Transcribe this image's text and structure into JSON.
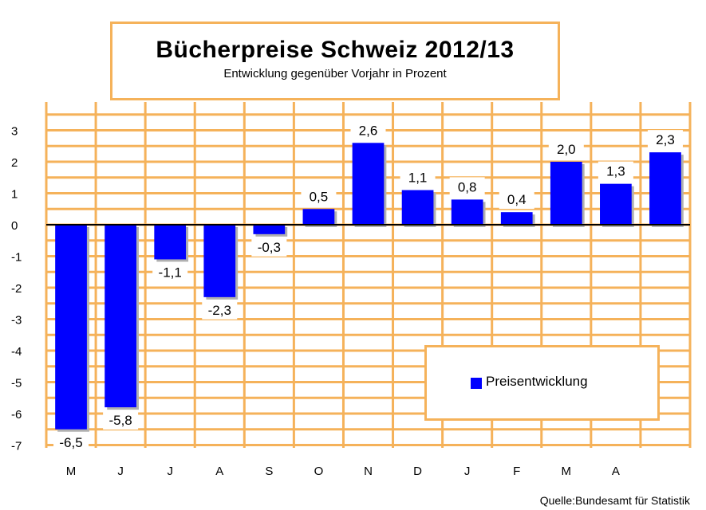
{
  "chart_data": {
    "type": "bar",
    "title": "Bücherpreise Schweiz 2012/13",
    "subtitle": "Entwicklung gegenüber Vorjahr in Prozent",
    "categories": [
      "M",
      "J",
      "J",
      "A",
      "S",
      "O",
      "N",
      "D",
      "J",
      "F",
      "M",
      "A",
      ""
    ],
    "series": [
      {
        "name": "Preisentwicklung",
        "values": [
          -6.5,
          -5.8,
          -1.1,
          -2.3,
          -0.3,
          0.5,
          2.6,
          1.1,
          0.8,
          0.4,
          2.0,
          1.3,
          2.3
        ],
        "labels": [
          "-6,5",
          "-5,8",
          "-1,1",
          "-2,3",
          "-0,3",
          "0,5",
          "2,6",
          "1,1",
          "0,8",
          "0,4",
          "2,0",
          "1,3",
          "2,3"
        ]
      }
    ],
    "yticks": [
      3,
      2,
      1,
      0,
      -1,
      -2,
      -3,
      -4,
      -5,
      -6,
      -7
    ],
    "ytick_labels": [
      "3",
      "2",
      "1",
      "0",
      "-1",
      "-2",
      "-3",
      "-4",
      "-5",
      "-6",
      "-7"
    ],
    "ylim": [
      -7,
      3.5
    ],
    "grid": true,
    "legend_position": "bottom-right",
    "source": "Quelle:Bundesamt für Statistik",
    "colors": {
      "bar": "#0000ff",
      "grid": "#f5b25a",
      "zero_line": "#000000",
      "bar_shadow": "#b0b0b0"
    }
  }
}
